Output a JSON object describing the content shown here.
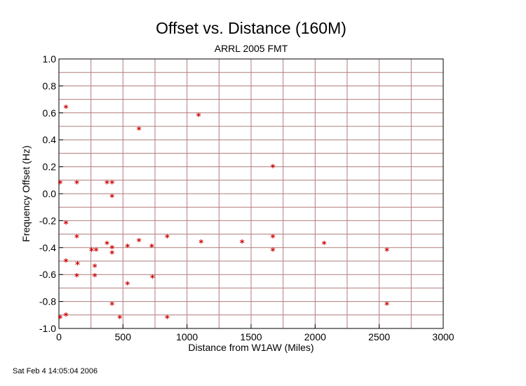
{
  "page": {
    "footer_timestamp": "Sat Feb  4 14:05:04 2006"
  },
  "chart_data": {
    "type": "scatter",
    "title": "Offset vs. Distance (160M)",
    "subtitle": "ARRL 2005 FMT",
    "xlabel": "Distance from W1AW (Miles)",
    "ylabel": "Frequency Offset (Hz)",
    "xlim": [
      0,
      3000
    ],
    "ylim": [
      -1.0,
      1.0
    ],
    "x_ticks": [
      0,
      500,
      1000,
      1500,
      2000,
      2500,
      3000
    ],
    "x_tick_labels": [
      "0",
      "500",
      "1000",
      "1500",
      "2000",
      "2500",
      "3000"
    ],
    "y_ticks": [
      -1.0,
      -0.8,
      -0.6,
      -0.4,
      -0.2,
      0.0,
      0.2,
      0.4,
      0.6,
      0.8,
      1.0
    ],
    "y_tick_labels": [
      "-1.0",
      "-0.8",
      "-0.6",
      "-0.4",
      "-0.2",
      "0.0",
      "0.2",
      "0.4",
      "0.6",
      "0.8",
      "1.0"
    ],
    "x_grid_step": 250,
    "y_grid_step": 0.1,
    "grid": true,
    "marker": "*",
    "marker_color": "#cc0000",
    "grid_color": "#b07c7c",
    "series": [
      {
        "name": "stations",
        "points": [
          {
            "x": 10,
            "y": 0.08
          },
          {
            "x": 55,
            "y": 0.64
          },
          {
            "x": 55,
            "y": -0.22
          },
          {
            "x": 55,
            "y": -0.5
          },
          {
            "x": 55,
            "y": -0.9
          },
          {
            "x": 10,
            "y": -0.92
          },
          {
            "x": 140,
            "y": 0.08
          },
          {
            "x": 140,
            "y": -0.32
          },
          {
            "x": 145,
            "y": -0.52
          },
          {
            "x": 140,
            "y": -0.61
          },
          {
            "x": 255,
            "y": -0.42
          },
          {
            "x": 290,
            "y": -0.42
          },
          {
            "x": 280,
            "y": -0.54
          },
          {
            "x": 280,
            "y": -0.61
          },
          {
            "x": 375,
            "y": 0.08
          },
          {
            "x": 415,
            "y": 0.08
          },
          {
            "x": 415,
            "y": -0.02
          },
          {
            "x": 375,
            "y": -0.37
          },
          {
            "x": 415,
            "y": -0.4
          },
          {
            "x": 415,
            "y": -0.44
          },
          {
            "x": 415,
            "y": -0.82
          },
          {
            "x": 475,
            "y": -0.92
          },
          {
            "x": 535,
            "y": -0.39
          },
          {
            "x": 535,
            "y": -0.67
          },
          {
            "x": 625,
            "y": 0.48
          },
          {
            "x": 625,
            "y": -0.35
          },
          {
            "x": 725,
            "y": -0.39
          },
          {
            "x": 730,
            "y": -0.62
          },
          {
            "x": 845,
            "y": -0.32
          },
          {
            "x": 845,
            "y": -0.92
          },
          {
            "x": 1090,
            "y": 0.58
          },
          {
            "x": 1110,
            "y": -0.36
          },
          {
            "x": 1430,
            "y": -0.36
          },
          {
            "x": 1670,
            "y": 0.2
          },
          {
            "x": 1670,
            "y": -0.32
          },
          {
            "x": 1670,
            "y": -0.42
          },
          {
            "x": 2070,
            "y": -0.37
          },
          {
            "x": 2560,
            "y": -0.42
          },
          {
            "x": 2560,
            "y": -0.82
          }
        ]
      }
    ]
  }
}
